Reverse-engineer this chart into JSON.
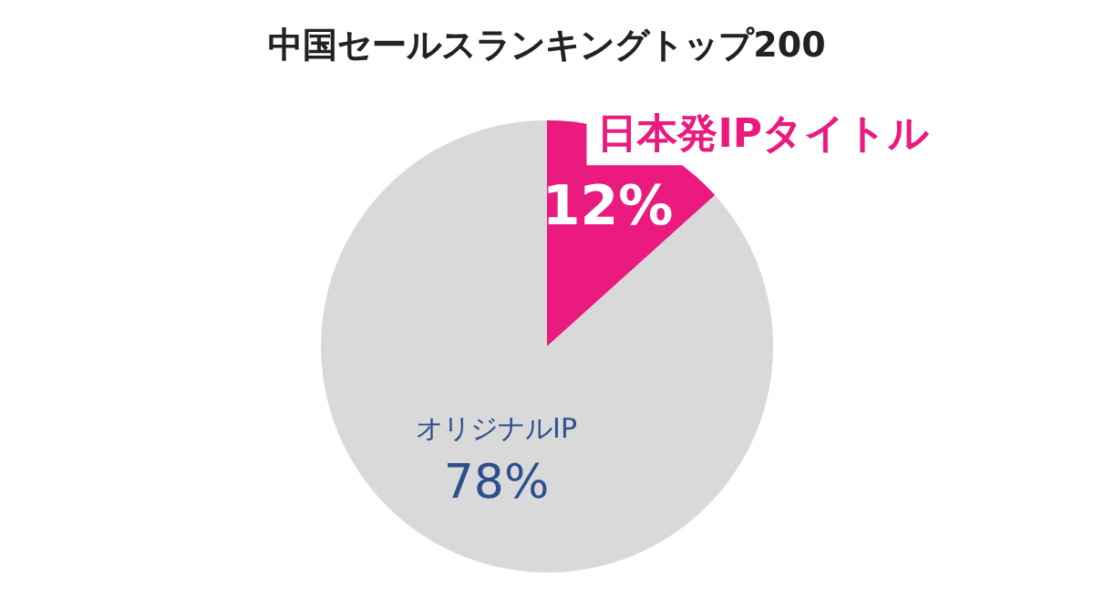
{
  "chart_data": {
    "type": "pie",
    "title": "中国セールスランキングトップ200",
    "categories": [
      "日本発IPタイトル",
      "オリジナルIP"
    ],
    "values": [
      12,
      78
    ],
    "colors": [
      "#ea1a7f",
      "#d9d9d9"
    ],
    "value_labels": [
      "12%",
      "78%"
    ],
    "legend": false
  }
}
